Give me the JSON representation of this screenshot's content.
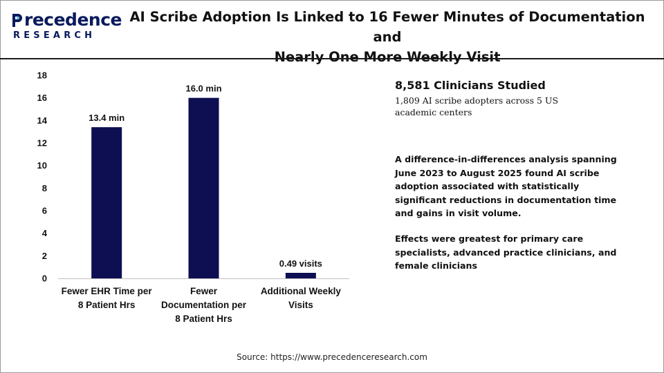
{
  "header": {
    "logo_top": "recedence",
    "logo_bottom": "RESEARCH",
    "title_line1": "AI Scribe Adoption Is Linked to 16 Fewer Minutes of Documentation and",
    "title_line2": "Nearly One More Weekly Visit"
  },
  "colors": {
    "bar": "#0d0f52",
    "brand": "#0a1a5c",
    "logo_accent": "#2ab0d8"
  },
  "chart_data": {
    "type": "bar",
    "categories": [
      [
        "Fewer EHR Time per",
        "8 Patient Hrs"
      ],
      [
        "Fewer",
        "Documentation per",
        "8 Patient Hrs"
      ],
      [
        "Additional Weekly",
        "Visits"
      ]
    ],
    "values": [
      13.4,
      16.0,
      0.49
    ],
    "data_labels": [
      "13.4 min",
      "16.0 min",
      "0.49 visits"
    ],
    "ylim": [
      0,
      18
    ],
    "yticks": [
      0,
      2,
      4,
      6,
      8,
      10,
      12,
      14,
      16,
      18
    ],
    "grid": false,
    "legend": "none"
  },
  "side": {
    "stat_head": "8,581 Clinicians Studied",
    "stat_sub": "1,809 AI scribe adopters across 5 US academic centers",
    "para1": "A difference-in-differences analysis spanning June 2023 to August 2025 found AI scribe adoption associated with statistically significant reductions in documentation time and gains in visit volume.",
    "para2": "Effects were greatest for primary care specialists, advanced practice clinicians, and female clinicians"
  },
  "footer": {
    "source": "Source: https://www.precedenceresearch.com"
  }
}
